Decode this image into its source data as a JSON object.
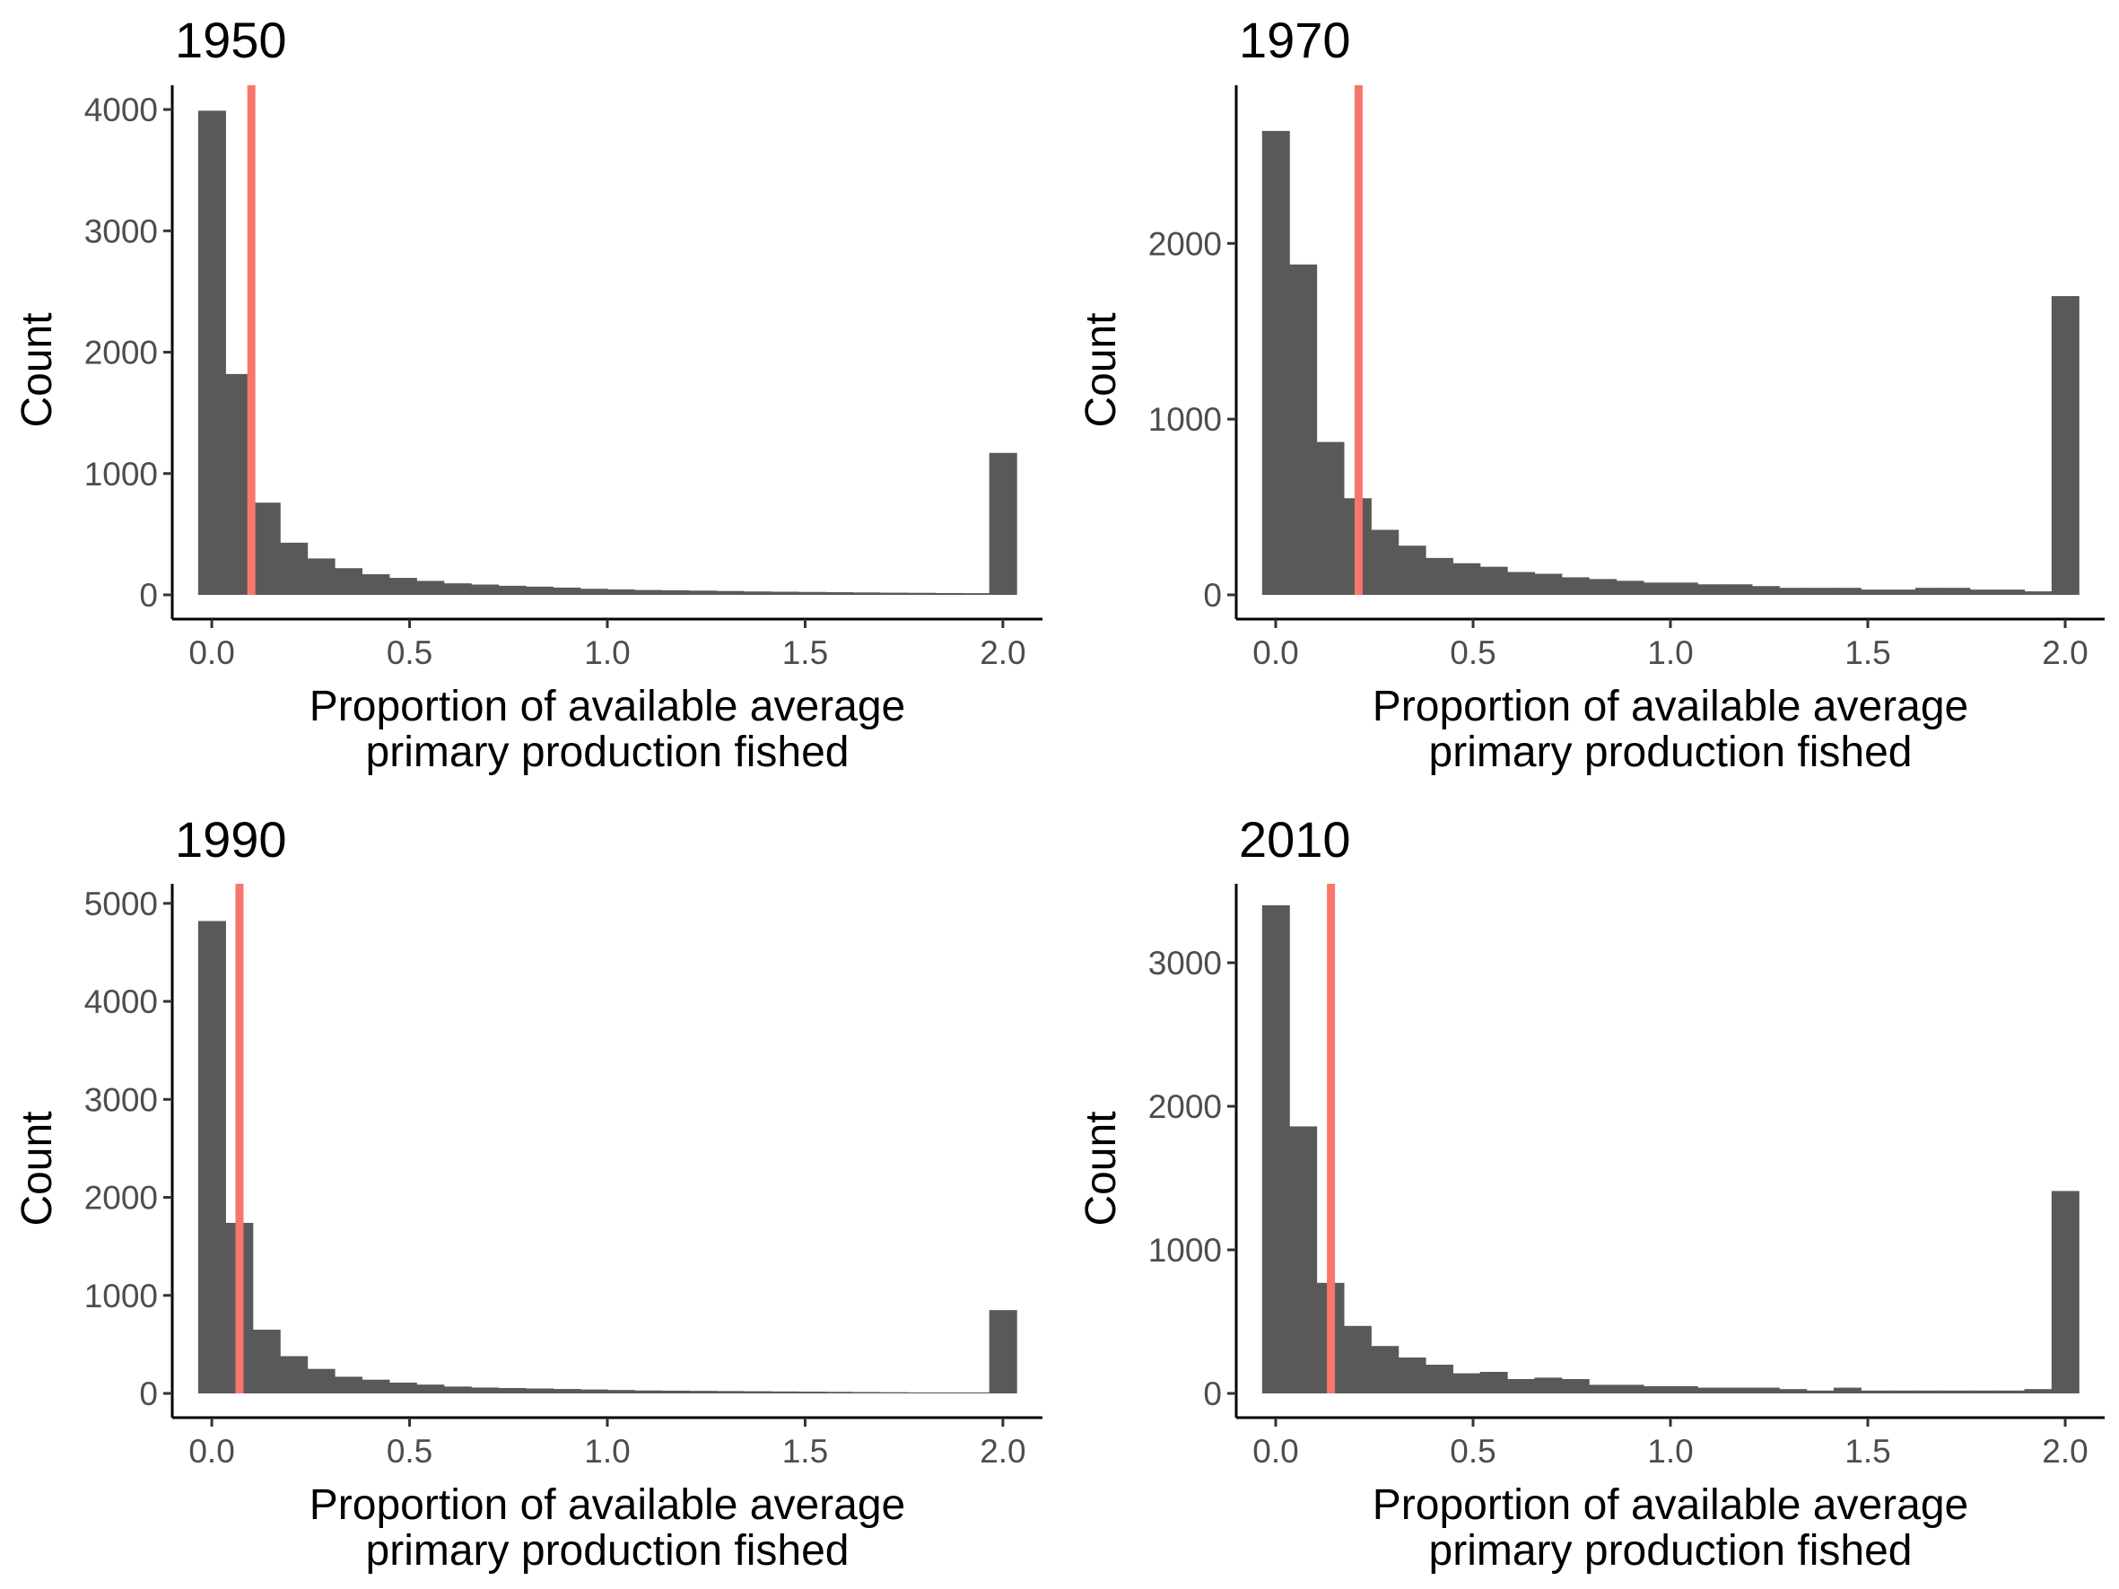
{
  "figure": {
    "x_axis_title_line1": "Proportion of available average",
    "x_axis_title_line2": "primary production fished",
    "y_axis_title": "Count",
    "bar_color": "#595959",
    "reference_line_color": "#f8766d"
  },
  "chart_data": [
    {
      "type": "bar",
      "title": "1950",
      "xlabel": "Proportion of available average primary production fished",
      "ylabel": "Count",
      "xlim": [
        -0.1,
        2.1
      ],
      "ylim": [
        0,
        4200
      ],
      "x_ticks": [
        0.0,
        0.5,
        1.0,
        1.5,
        2.0
      ],
      "x_tick_labels": [
        "0.0",
        "0.5",
        "1.0",
        "1.5",
        "2.0"
      ],
      "y_ticks": [
        0,
        1000,
        2000,
        3000,
        4000
      ],
      "y_tick_labels": [
        "0",
        "1000",
        "2000",
        "3000",
        "4000"
      ],
      "bin_width": 0.069,
      "bin_centers": [
        0.0,
        0.069,
        0.138,
        0.207,
        0.276,
        0.345,
        0.414,
        0.483,
        0.552,
        0.621,
        0.69,
        0.759,
        0.828,
        0.897,
        0.966,
        1.034,
        1.103,
        1.172,
        1.241,
        1.31,
        1.379,
        1.448,
        1.517,
        1.586,
        1.655,
        1.724,
        1.793,
        1.862,
        1.931,
        2.0
      ],
      "values": [
        3990,
        1820,
        760,
        430,
        300,
        220,
        170,
        140,
        115,
        95,
        85,
        75,
        68,
        60,
        50,
        45,
        40,
        38,
        35,
        32,
        28,
        26,
        24,
        22,
        20,
        18,
        17,
        15,
        14,
        1170
      ],
      "reference_line_x": 0.1
    },
    {
      "type": "bar",
      "title": "1970",
      "xlabel": "Proportion of available average primary production fished",
      "ylabel": "Count",
      "xlim": [
        -0.1,
        2.1
      ],
      "ylim": [
        0,
        2900
      ],
      "x_ticks": [
        0.0,
        0.5,
        1.0,
        1.5,
        2.0
      ],
      "x_tick_labels": [
        "0.0",
        "0.5",
        "1.0",
        "1.5",
        "2.0"
      ],
      "y_ticks": [
        0,
        1000,
        2000
      ],
      "y_tick_labels": [
        "0",
        "1000",
        "2000"
      ],
      "bin_width": 0.069,
      "bin_centers": [
        0.0,
        0.069,
        0.138,
        0.207,
        0.276,
        0.345,
        0.414,
        0.483,
        0.552,
        0.621,
        0.69,
        0.759,
        0.828,
        0.897,
        0.966,
        1.034,
        1.103,
        1.172,
        1.241,
        1.31,
        1.379,
        1.448,
        1.517,
        1.586,
        1.655,
        1.724,
        1.793,
        1.862,
        1.931,
        2.0
      ],
      "values": [
        2640,
        1880,
        870,
        550,
        370,
        280,
        210,
        180,
        160,
        130,
        120,
        100,
        90,
        80,
        70,
        70,
        60,
        60,
        50,
        40,
        40,
        40,
        30,
        30,
        40,
        40,
        30,
        30,
        20,
        1700
      ],
      "reference_line_x": 0.21
    },
    {
      "type": "bar",
      "title": "1990",
      "xlabel": "Proportion of available average primary production fished",
      "ylabel": "Count",
      "xlim": [
        -0.1,
        2.1
      ],
      "ylim": [
        0,
        5200
      ],
      "x_ticks": [
        0.0,
        0.5,
        1.0,
        1.5,
        2.0
      ],
      "x_tick_labels": [
        "0.0",
        "0.5",
        "1.0",
        "1.5",
        "2.0"
      ],
      "y_ticks": [
        0,
        1000,
        2000,
        3000,
        4000,
        5000
      ],
      "y_tick_labels": [
        "0",
        "1000",
        "2000",
        "3000",
        "4000",
        "5000"
      ],
      "bin_width": 0.069,
      "bin_centers": [
        0.0,
        0.069,
        0.138,
        0.207,
        0.276,
        0.345,
        0.414,
        0.483,
        0.552,
        0.621,
        0.69,
        0.759,
        0.828,
        0.897,
        0.966,
        1.034,
        1.103,
        1.172,
        1.241,
        1.31,
        1.379,
        1.448,
        1.517,
        1.586,
        1.655,
        1.724,
        1.793,
        1.862,
        1.931,
        2.0
      ],
      "values": [
        4820,
        1740,
        650,
        380,
        250,
        170,
        140,
        110,
        90,
        70,
        60,
        55,
        50,
        45,
        40,
        35,
        30,
        28,
        26,
        24,
        22,
        20,
        18,
        16,
        14,
        12,
        10,
        10,
        10,
        850
      ],
      "reference_line_x": 0.07
    },
    {
      "type": "bar",
      "title": "2010",
      "xlabel": "Proportion of available average primary production fished",
      "ylabel": "Count",
      "xlim": [
        -0.1,
        2.1
      ],
      "ylim": [
        0,
        3550
      ],
      "x_ticks": [
        0.0,
        0.5,
        1.0,
        1.5,
        2.0
      ],
      "x_tick_labels": [
        "0.0",
        "0.5",
        "1.0",
        "1.5",
        "2.0"
      ],
      "y_ticks": [
        0,
        1000,
        2000,
        3000
      ],
      "y_tick_labels": [
        "0",
        "1000",
        "2000",
        "3000"
      ],
      "bin_width": 0.069,
      "bin_centers": [
        0.0,
        0.069,
        0.138,
        0.207,
        0.276,
        0.345,
        0.414,
        0.483,
        0.552,
        0.621,
        0.69,
        0.759,
        0.828,
        0.897,
        0.966,
        1.034,
        1.103,
        1.172,
        1.241,
        1.31,
        1.379,
        1.448,
        1.517,
        1.586,
        1.655,
        1.724,
        1.793,
        1.862,
        1.931,
        2.0
      ],
      "values": [
        3400,
        1860,
        770,
        470,
        330,
        250,
        200,
        140,
        150,
        100,
        110,
        100,
        60,
        60,
        50,
        50,
        40,
        40,
        40,
        30,
        20,
        40,
        20,
        20,
        20,
        20,
        20,
        20,
        30,
        1410
      ],
      "reference_line_x": 0.14
    }
  ]
}
